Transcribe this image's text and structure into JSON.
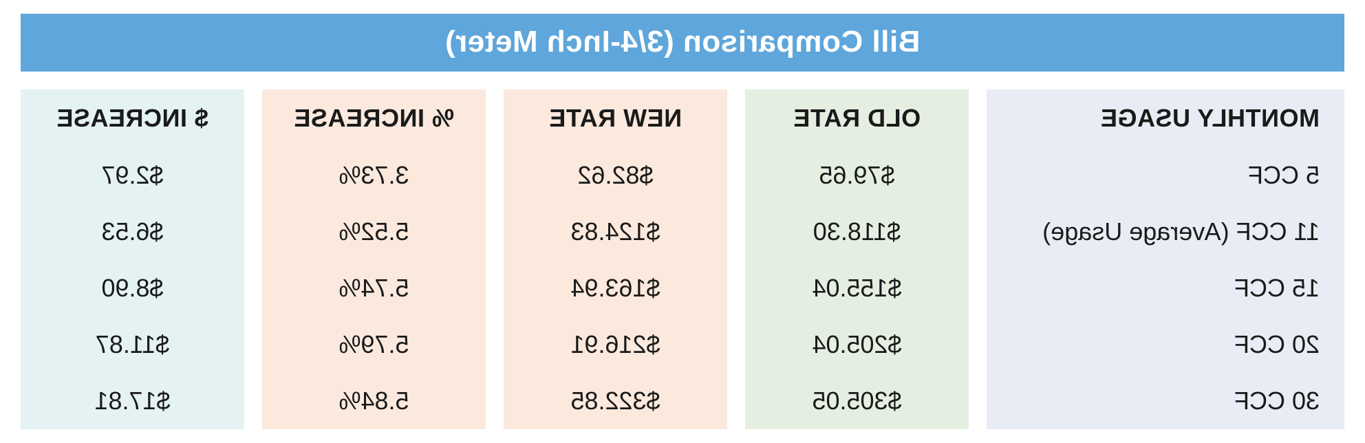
{
  "title": "Bill Comparison (3/4-Inch Meter)",
  "colors": {
    "title_bg": "#5ea6db",
    "title_text": "#ffffff",
    "usage_bg": "#e8ecf4",
    "old_bg": "#e5efe1",
    "new_bg": "#fbe9de",
    "pct_bg": "#fbe9de",
    "dollar_bg": "#e4f2f3",
    "text": "#1a1a1a"
  },
  "columns": {
    "usage": "MONTHLY USAGE",
    "old": "OLD RATE",
    "new": "NEW RATE",
    "pct": "% INCREASE",
    "dollar": "$ INCREASE"
  },
  "rows": [
    {
      "usage": "5 CCF",
      "old": "$79.65",
      "new": "$82.62",
      "pct": "3.73%",
      "dollar": "$2.97"
    },
    {
      "usage": "11 CCF (Average Usage)",
      "old": "$118.30",
      "new": "$124.83",
      "pct": "5.52%",
      "dollar": "$6.53"
    },
    {
      "usage": "15 CCF",
      "old": "$155.04",
      "new": "$163.94",
      "pct": "5.74%",
      "dollar": "$8.90"
    },
    {
      "usage": "20 CCF",
      "old": "$205.04",
      "new": "$216.91",
      "pct": "5.79%",
      "dollar": "$11.87"
    },
    {
      "usage": "30 CCF",
      "old": "$305.05",
      "new": "$322.85",
      "pct": "5.84%",
      "dollar": "$17.81"
    }
  ]
}
